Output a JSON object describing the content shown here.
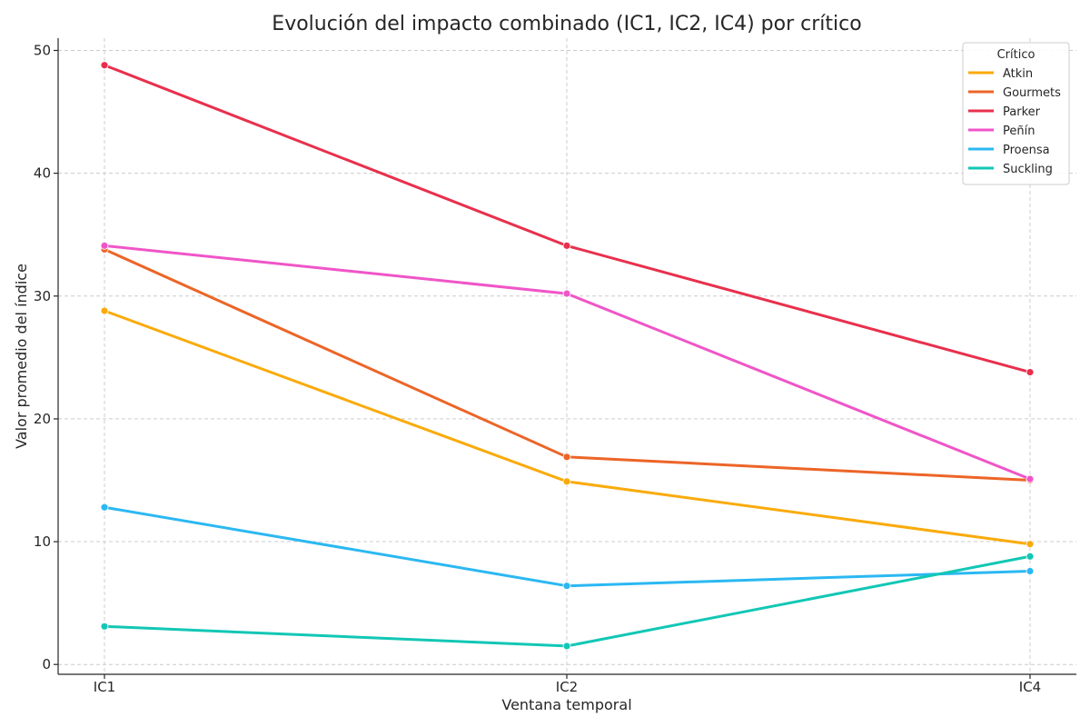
{
  "chart_data": {
    "type": "line",
    "title": "Evolución del impacto combinado (IC1, IC2, IC4) por crítico",
    "xlabel": "Ventana temporal",
    "ylabel": "Valor promedio del índice",
    "categories": [
      "IC1",
      "IC2",
      "IC4"
    ],
    "ylim": [
      -0.8,
      51
    ],
    "yticks": [
      0,
      10,
      20,
      30,
      40,
      50
    ],
    "grid": true,
    "legend": {
      "title": "Crítico",
      "placement": "top-right"
    },
    "series": [
      {
        "name": "Atkin",
        "color": "#f9ab0c",
        "values": [
          28.8,
          14.9,
          9.8
        ]
      },
      {
        "name": "Gourmets",
        "color": "#ec6527",
        "values": [
          33.8,
          16.9,
          15.0
        ]
      },
      {
        "name": "Parker",
        "color": "#e8304d",
        "values": [
          48.8,
          34.1,
          23.8
        ]
      },
      {
        "name": "Peñín",
        "color": "#f055c8",
        "values": [
          34.1,
          30.2,
          15.1
        ]
      },
      {
        "name": "Proensa",
        "color": "#2bb8f2",
        "values": [
          12.8,
          6.4,
          7.6
        ]
      },
      {
        "name": "Suckling",
        "color": "#12c7b5",
        "values": [
          3.1,
          1.5,
          8.8
        ]
      }
    ]
  }
}
